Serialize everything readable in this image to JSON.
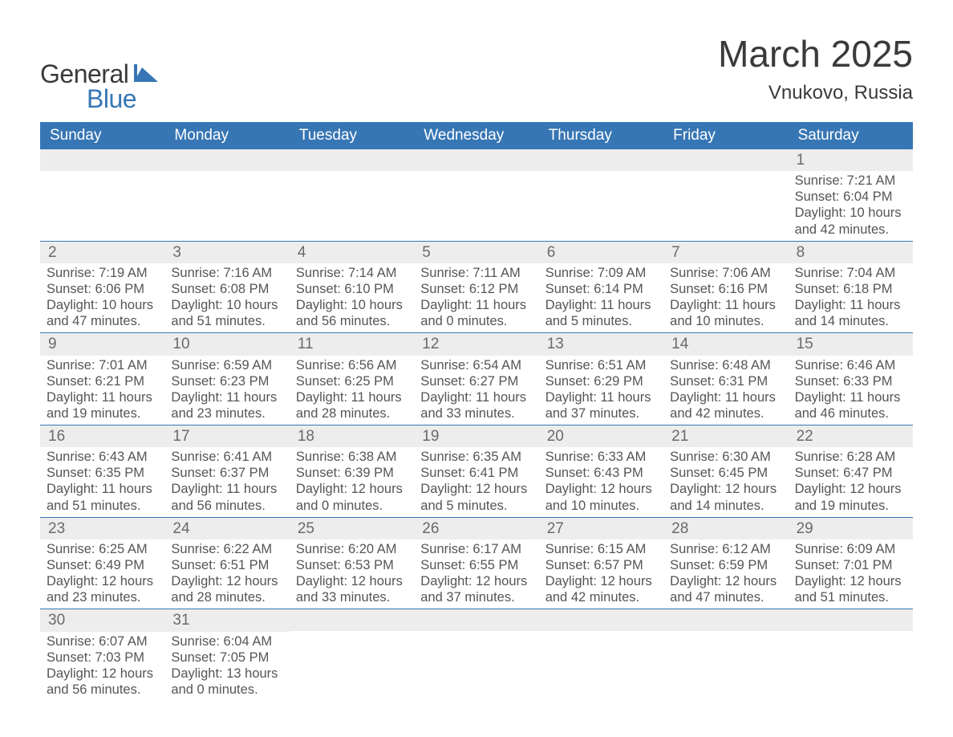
{
  "logo": {
    "word1": "General",
    "word2": "Blue"
  },
  "title": "March 2025",
  "location": "Vnukovo, Russia",
  "colors": {
    "header_bg": "#3776b4",
    "header_text": "#ffffff",
    "daynum_bg": "#ededed",
    "daynum_text": "#6a6a6a",
    "body_text": "#555555",
    "rule": "#3776b4",
    "logo_blue": "#3776b4",
    "logo_dark": "#3a3a3a"
  },
  "day_names": [
    "Sunday",
    "Monday",
    "Tuesday",
    "Wednesday",
    "Thursday",
    "Friday",
    "Saturday"
  ],
  "weeks": [
    [
      null,
      null,
      null,
      null,
      null,
      null,
      {
        "n": "1",
        "sunrise": "7:21 AM",
        "sunset": "6:04 PM",
        "dl_h": "10",
        "dl_m": "42"
      }
    ],
    [
      {
        "n": "2",
        "sunrise": "7:19 AM",
        "sunset": "6:06 PM",
        "dl_h": "10",
        "dl_m": "47"
      },
      {
        "n": "3",
        "sunrise": "7:16 AM",
        "sunset": "6:08 PM",
        "dl_h": "10",
        "dl_m": "51"
      },
      {
        "n": "4",
        "sunrise": "7:14 AM",
        "sunset": "6:10 PM",
        "dl_h": "10",
        "dl_m": "56"
      },
      {
        "n": "5",
        "sunrise": "7:11 AM",
        "sunset": "6:12 PM",
        "dl_h": "11",
        "dl_m": "0"
      },
      {
        "n": "6",
        "sunrise": "7:09 AM",
        "sunset": "6:14 PM",
        "dl_h": "11",
        "dl_m": "5"
      },
      {
        "n": "7",
        "sunrise": "7:06 AM",
        "sunset": "6:16 PM",
        "dl_h": "11",
        "dl_m": "10"
      },
      {
        "n": "8",
        "sunrise": "7:04 AM",
        "sunset": "6:18 PM",
        "dl_h": "11",
        "dl_m": "14"
      }
    ],
    [
      {
        "n": "9",
        "sunrise": "7:01 AM",
        "sunset": "6:21 PM",
        "dl_h": "11",
        "dl_m": "19"
      },
      {
        "n": "10",
        "sunrise": "6:59 AM",
        "sunset": "6:23 PM",
        "dl_h": "11",
        "dl_m": "23"
      },
      {
        "n": "11",
        "sunrise": "6:56 AM",
        "sunset": "6:25 PM",
        "dl_h": "11",
        "dl_m": "28"
      },
      {
        "n": "12",
        "sunrise": "6:54 AM",
        "sunset": "6:27 PM",
        "dl_h": "11",
        "dl_m": "33"
      },
      {
        "n": "13",
        "sunrise": "6:51 AM",
        "sunset": "6:29 PM",
        "dl_h": "11",
        "dl_m": "37"
      },
      {
        "n": "14",
        "sunrise": "6:48 AM",
        "sunset": "6:31 PM",
        "dl_h": "11",
        "dl_m": "42"
      },
      {
        "n": "15",
        "sunrise": "6:46 AM",
        "sunset": "6:33 PM",
        "dl_h": "11",
        "dl_m": "46"
      }
    ],
    [
      {
        "n": "16",
        "sunrise": "6:43 AM",
        "sunset": "6:35 PM",
        "dl_h": "11",
        "dl_m": "51"
      },
      {
        "n": "17",
        "sunrise": "6:41 AM",
        "sunset": "6:37 PM",
        "dl_h": "11",
        "dl_m": "56"
      },
      {
        "n": "18",
        "sunrise": "6:38 AM",
        "sunset": "6:39 PM",
        "dl_h": "12",
        "dl_m": "0"
      },
      {
        "n": "19",
        "sunrise": "6:35 AM",
        "sunset": "6:41 PM",
        "dl_h": "12",
        "dl_m": "5"
      },
      {
        "n": "20",
        "sunrise": "6:33 AM",
        "sunset": "6:43 PM",
        "dl_h": "12",
        "dl_m": "10"
      },
      {
        "n": "21",
        "sunrise": "6:30 AM",
        "sunset": "6:45 PM",
        "dl_h": "12",
        "dl_m": "14"
      },
      {
        "n": "22",
        "sunrise": "6:28 AM",
        "sunset": "6:47 PM",
        "dl_h": "12",
        "dl_m": "19"
      }
    ],
    [
      {
        "n": "23",
        "sunrise": "6:25 AM",
        "sunset": "6:49 PM",
        "dl_h": "12",
        "dl_m": "23"
      },
      {
        "n": "24",
        "sunrise": "6:22 AM",
        "sunset": "6:51 PM",
        "dl_h": "12",
        "dl_m": "28"
      },
      {
        "n": "25",
        "sunrise": "6:20 AM",
        "sunset": "6:53 PM",
        "dl_h": "12",
        "dl_m": "33"
      },
      {
        "n": "26",
        "sunrise": "6:17 AM",
        "sunset": "6:55 PM",
        "dl_h": "12",
        "dl_m": "37"
      },
      {
        "n": "27",
        "sunrise": "6:15 AM",
        "sunset": "6:57 PM",
        "dl_h": "12",
        "dl_m": "42"
      },
      {
        "n": "28",
        "sunrise": "6:12 AM",
        "sunset": "6:59 PM",
        "dl_h": "12",
        "dl_m": "47"
      },
      {
        "n": "29",
        "sunrise": "6:09 AM",
        "sunset": "7:01 PM",
        "dl_h": "12",
        "dl_m": "51"
      }
    ],
    [
      {
        "n": "30",
        "sunrise": "6:07 AM",
        "sunset": "7:03 PM",
        "dl_h": "12",
        "dl_m": "56"
      },
      {
        "n": "31",
        "sunrise": "6:04 AM",
        "sunset": "7:05 PM",
        "dl_h": "13",
        "dl_m": "0"
      },
      null,
      null,
      null,
      null,
      null
    ]
  ],
  "labels": {
    "sunrise": "Sunrise: ",
    "sunset": "Sunset: ",
    "daylight1": "Daylight: ",
    "hours_word": " hours",
    "and_word": "and ",
    "minutes_word": " minutes."
  }
}
